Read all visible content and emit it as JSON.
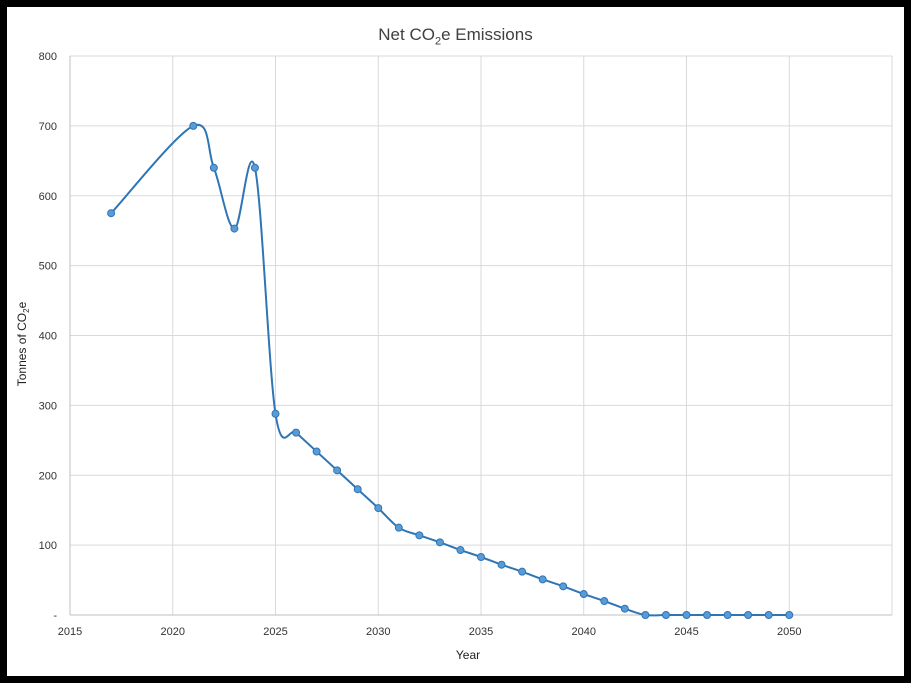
{
  "chart_data": {
    "type": "line",
    "title_main": "Net CO",
    "title_sub": "2",
    "title_rest": "e Emissions",
    "xlabel": "Year",
    "ylabel_main": "Tonnes of CO",
    "ylabel_sub": "2",
    "ylabel_rest": "e",
    "xlim": [
      2015,
      2055
    ],
    "ylim": [
      0,
      800
    ],
    "x_ticks": [
      2015,
      2020,
      2025,
      2030,
      2035,
      2040,
      2045,
      2050
    ],
    "y_ticks": [
      0,
      100,
      200,
      300,
      400,
      500,
      600,
      700,
      800
    ],
    "y_tick_labels": [
      "-",
      "100",
      "200",
      "300",
      "400",
      "500",
      "600",
      "700",
      "800"
    ],
    "grid": true,
    "smoothed": true,
    "series": [
      {
        "color": "#2e75b6",
        "marker_color": "#5b9bd5",
        "points": [
          {
            "x": 2017,
            "y": 575
          },
          {
            "x": 2021,
            "y": 700
          },
          {
            "x": 2022,
            "y": 640
          },
          {
            "x": 2023,
            "y": 553
          },
          {
            "x": 2024,
            "y": 640
          },
          {
            "x": 2025,
            "y": 288
          },
          {
            "x": 2026,
            "y": 261
          },
          {
            "x": 2027,
            "y": 234
          },
          {
            "x": 2028,
            "y": 207
          },
          {
            "x": 2029,
            "y": 180
          },
          {
            "x": 2030,
            "y": 153
          },
          {
            "x": 2031,
            "y": 125
          },
          {
            "x": 2032,
            "y": 114
          },
          {
            "x": 2033,
            "y": 104
          },
          {
            "x": 2034,
            "y": 93
          },
          {
            "x": 2035,
            "y": 83
          },
          {
            "x": 2036,
            "y": 72
          },
          {
            "x": 2037,
            "y": 62
          },
          {
            "x": 2038,
            "y": 51
          },
          {
            "x": 2039,
            "y": 41
          },
          {
            "x": 2040,
            "y": 30
          },
          {
            "x": 2041,
            "y": 20
          },
          {
            "x": 2042,
            "y": 9
          },
          {
            "x": 2043,
            "y": 0
          },
          {
            "x": 2044,
            "y": 0
          },
          {
            "x": 2045,
            "y": 0
          },
          {
            "x": 2046,
            "y": 0
          },
          {
            "x": 2047,
            "y": 0
          },
          {
            "x": 2048,
            "y": 0
          },
          {
            "x": 2049,
            "y": 0
          },
          {
            "x": 2050,
            "y": 0
          }
        ]
      }
    ]
  }
}
